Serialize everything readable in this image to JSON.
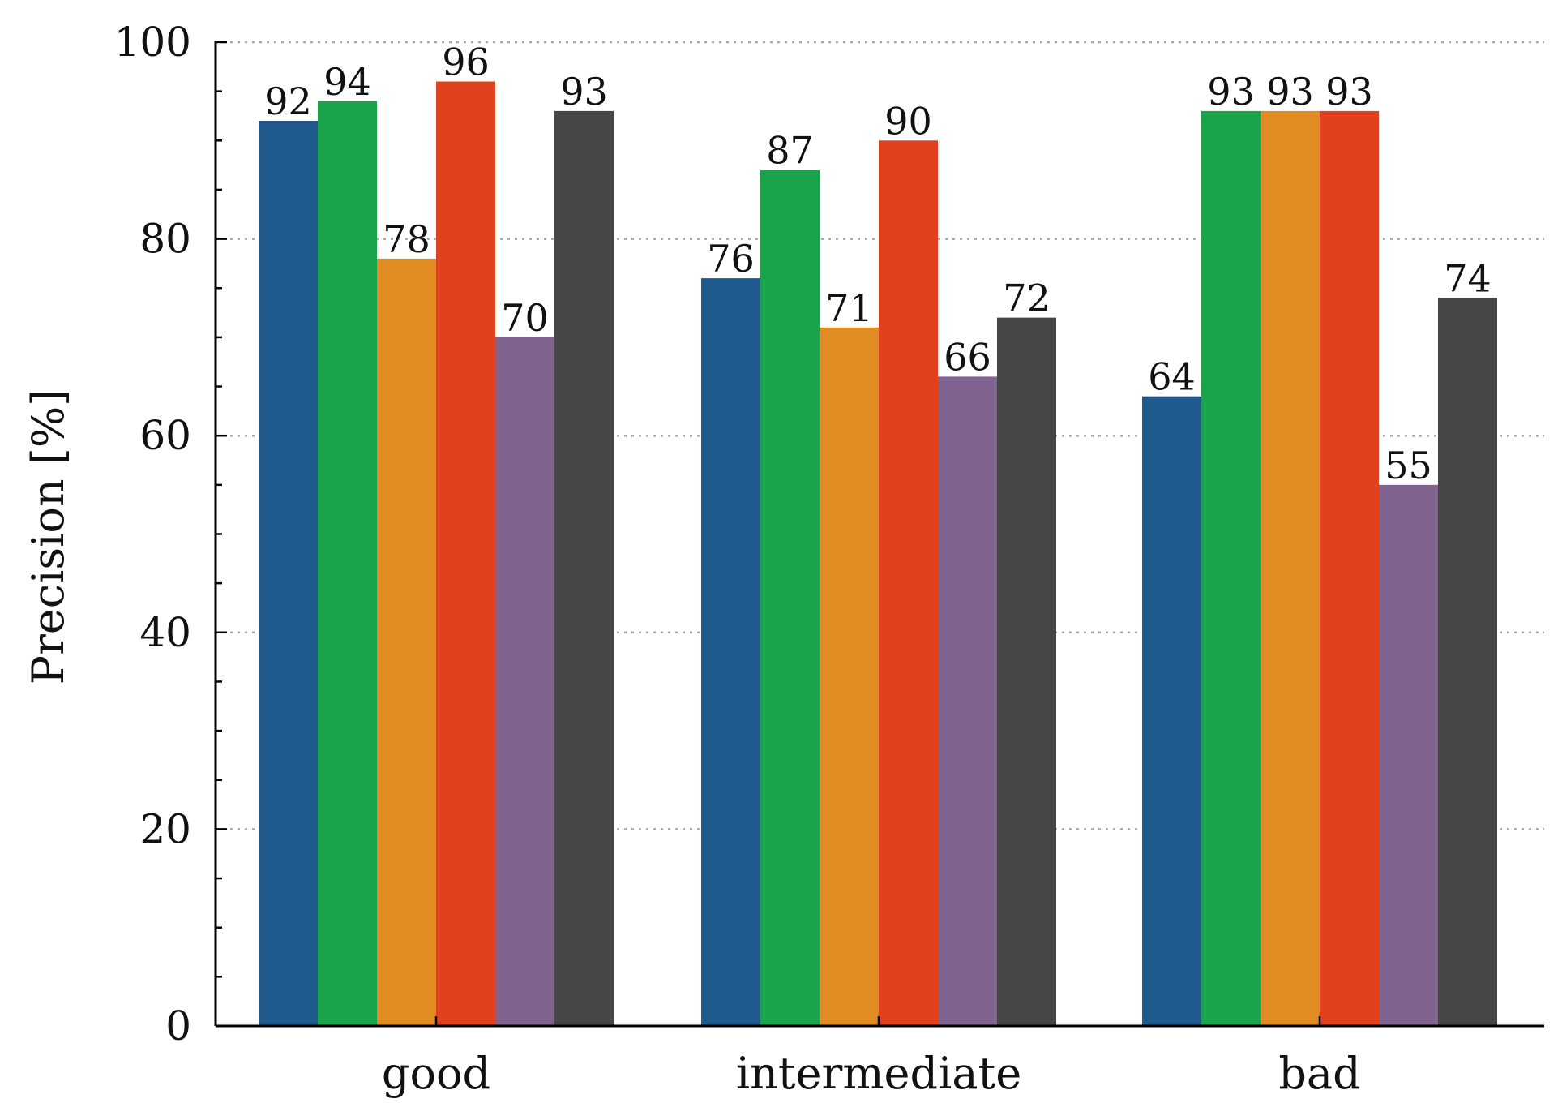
{
  "chart_data": {
    "type": "bar",
    "title": "",
    "xlabel": "",
    "ylabel": "Precision [%]",
    "ylim": [
      0,
      100
    ],
    "yticks": [
      "0",
      "20",
      "40",
      "60",
      "80",
      "100"
    ],
    "grid": "horizontal-dotted",
    "legend": "none",
    "categories": [
      "good",
      "intermediate",
      "bad"
    ],
    "series": [
      {
        "name": "series-1",
        "color": "#1f5a8f",
        "values": [
          92,
          76,
          64
        ],
        "labels": [
          "92",
          "76",
          "64"
        ]
      },
      {
        "name": "series-2",
        "color": "#1aa34a",
        "values": [
          94,
          87,
          93
        ],
        "labels": [
          "94",
          "87",
          "93"
        ]
      },
      {
        "name": "series-3",
        "color": "#e08c22",
        "values": [
          78,
          71,
          93
        ],
        "labels": [
          "78",
          "71",
          "93"
        ]
      },
      {
        "name": "series-4",
        "color": "#e0421f",
        "values": [
          96,
          90,
          93
        ],
        "labels": [
          "96",
          "90",
          "93"
        ]
      },
      {
        "name": "series-5",
        "color": "#80638e",
        "values": [
          70,
          66,
          55
        ],
        "labels": [
          "70",
          "66",
          "55"
        ]
      },
      {
        "name": "series-6",
        "color": "#464646",
        "values": [
          93,
          72,
          74
        ],
        "labels": [
          "93",
          "72",
          "74"
        ]
      }
    ]
  }
}
